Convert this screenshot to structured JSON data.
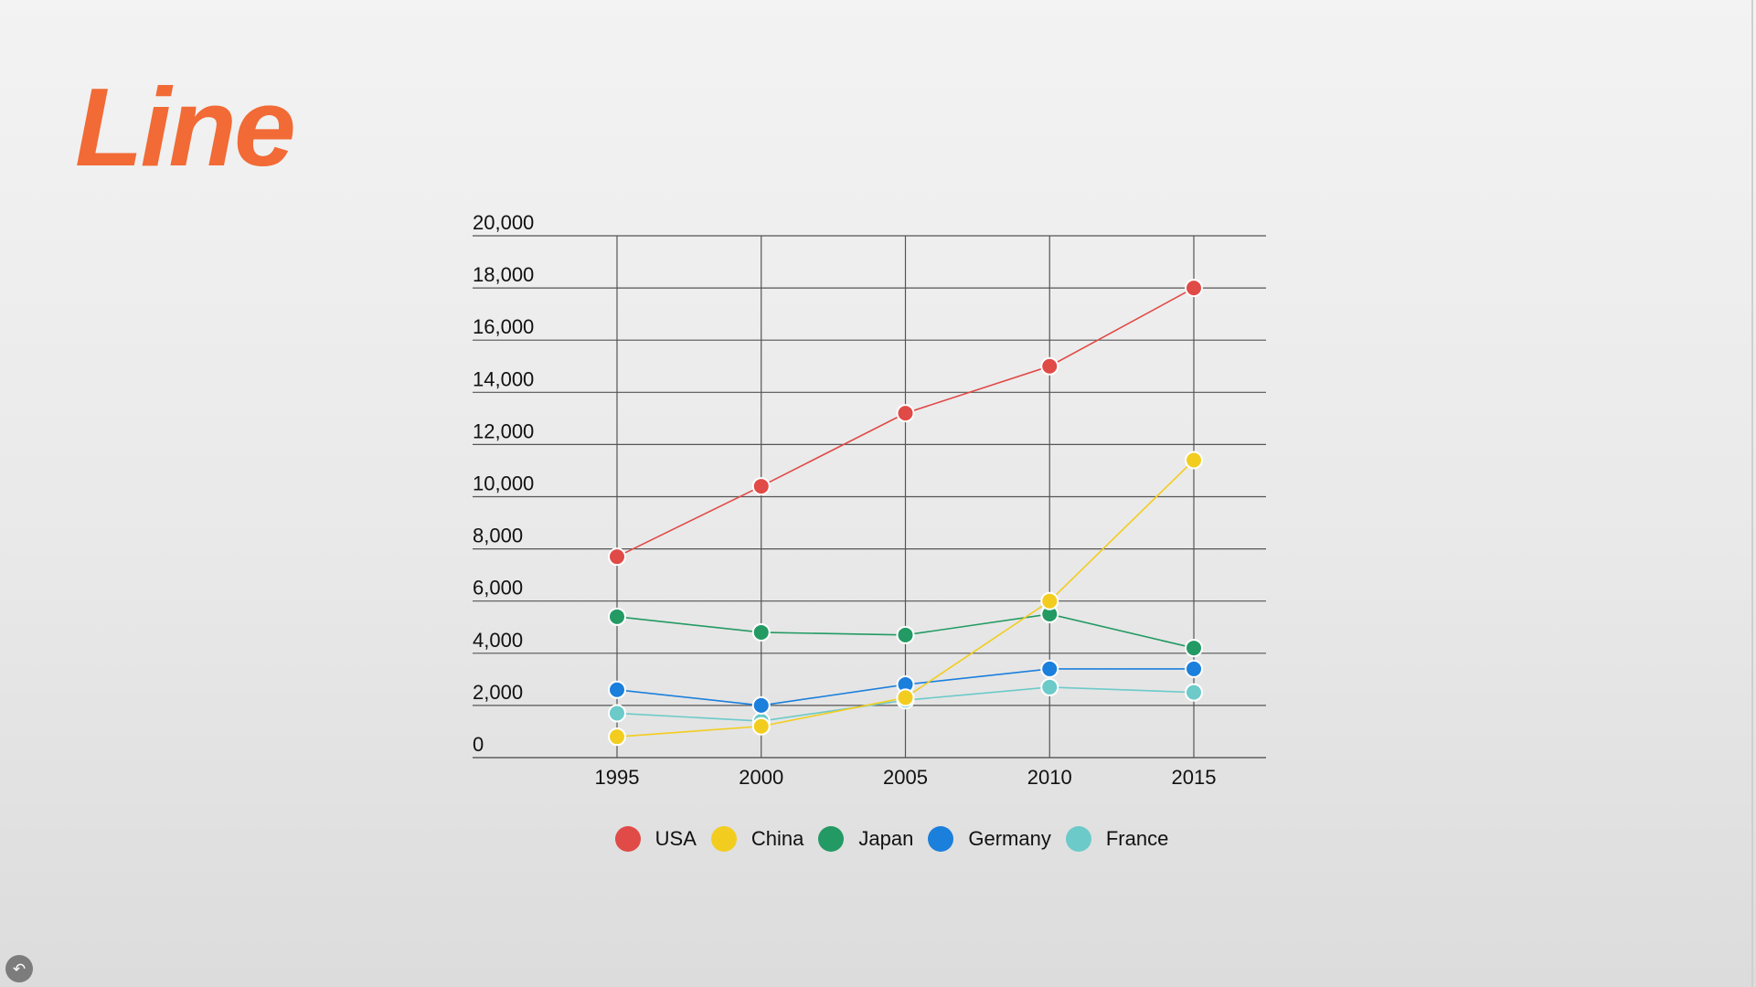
{
  "slide": {
    "title": "Line",
    "title_color": "#f26a35"
  },
  "controls": {
    "back_icon": "back-arrow-icon"
  },
  "chart_data": {
    "type": "line",
    "title": "",
    "xlabel": "",
    "ylabel": "",
    "x": [
      "1995",
      "2000",
      "2005",
      "2010",
      "2015"
    ],
    "ylim": [
      0,
      20000
    ],
    "yticks": [
      0,
      2000,
      4000,
      6000,
      8000,
      10000,
      12000,
      14000,
      16000,
      18000,
      20000
    ],
    "ytick_labels": [
      "0",
      "2,000",
      "4,000",
      "6,000",
      "8,000",
      "10,000",
      "12,000",
      "14,000",
      "16,000",
      "18,000",
      "20,000"
    ],
    "grid": true,
    "legend_position": "bottom",
    "series": [
      {
        "name": "USA",
        "color": "#e04a47",
        "values": [
          7700,
          10400,
          13200,
          15000,
          18000
        ]
      },
      {
        "name": "China",
        "color": "#f2cd1f",
        "values": [
          800,
          1200,
          2300,
          6000,
          11400
        ]
      },
      {
        "name": "Japan",
        "color": "#239a64",
        "values": [
          5400,
          4800,
          4700,
          5500,
          4200
        ]
      },
      {
        "name": "Germany",
        "color": "#1b7fdc",
        "values": [
          2600,
          2000,
          2800,
          3400,
          3400
        ]
      },
      {
        "name": "France",
        "color": "#6ccac9",
        "values": [
          1700,
          1400,
          2200,
          2700,
          2500
        ]
      }
    ]
  }
}
